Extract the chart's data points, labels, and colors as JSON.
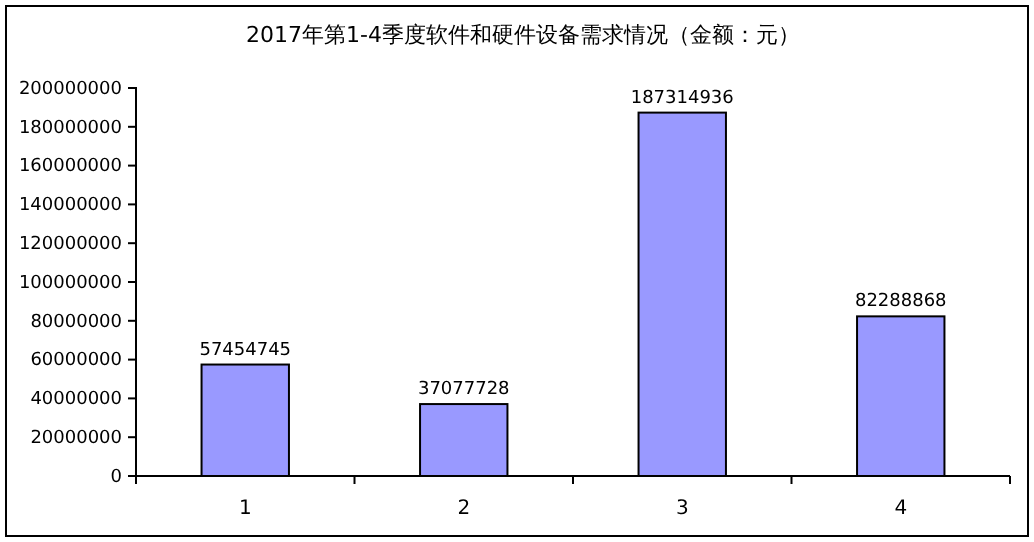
{
  "chart_data": {
    "type": "bar",
    "title": "2017年第1-4季度软件和硬件设备需求情况（金额：元）",
    "categories": [
      "1",
      "2",
      "3",
      "4"
    ],
    "values": [
      57454745,
      37077728,
      187314936,
      82288868
    ],
    "color": "#9999ff",
    "ylim": [
      0,
      200000000
    ],
    "yticks": [
      0,
      20000000,
      40000000,
      60000000,
      80000000,
      100000000,
      120000000,
      140000000,
      160000000,
      180000000,
      200000000
    ],
    "data_labels": true,
    "grid": false
  }
}
